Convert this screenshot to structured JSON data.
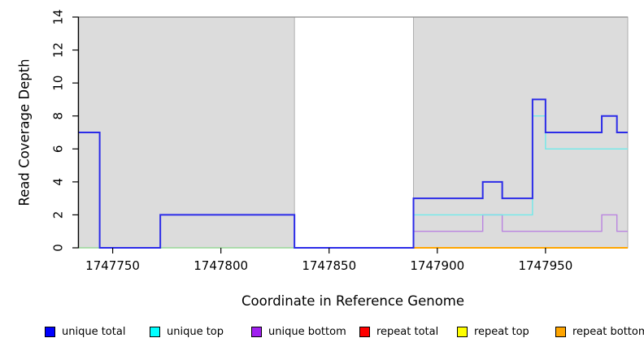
{
  "figure": {
    "xlabel": "Coordinate in Reference Genome",
    "ylabel": "Read Coverage Depth"
  },
  "chart_data": {
    "type": "line",
    "subtype": "step",
    "title": "",
    "xlabel": "Coordinate in Reference Genome",
    "ylabel": "Read Coverage Depth",
    "xlim": [
      1747734,
      1747988
    ],
    "ylim": [
      0,
      14
    ],
    "grid": false,
    "legend_position": "bottom",
    "x_ticks": [
      1747750,
      1747800,
      1747850,
      1747900,
      1747950
    ],
    "y_ticks": [
      0,
      2,
      4,
      6,
      8,
      10,
      12,
      14
    ],
    "top_border_value": 14,
    "shaded_regions": [
      {
        "x0": 1747734,
        "x1": 1747834,
        "fill": "#DCDCDC",
        "border": "#AEAEAE"
      },
      {
        "x0": 1747889,
        "x1": 1747988,
        "fill": "#DCDCDC",
        "border": "#AEAEAE"
      }
    ],
    "series": [
      {
        "name": "zero baseline left region",
        "color": "#97D797",
        "width": 1.4,
        "x": [
          1747734
        ],
        "y": [
          0
        ],
        "x_end": 1747834
      },
      {
        "name": "repeat bottom",
        "color": "#FFA500",
        "width": 2,
        "x": [
          1747889
        ],
        "y": [
          0
        ],
        "x_end": 1747988
      },
      {
        "name": "unique bottom",
        "color": "#BA84E0",
        "width": 1.4,
        "x": [
          1747889,
          1747921,
          1747930,
          1747976,
          1747983
        ],
        "y": [
          1,
          2,
          1,
          2,
          1
        ],
        "x_end": 1747988
      },
      {
        "name": "unique top",
        "color": "#70E9E9",
        "width": 1.4,
        "x": [
          1747889,
          1747944,
          1747950
        ],
        "y": [
          2,
          8,
          6
        ],
        "x_end": 1747988
      },
      {
        "name": "unique total",
        "color": "#2B2BE8",
        "width": 2,
        "x": [
          1747734,
          1747744,
          1747772,
          1747834,
          1747889,
          1747921,
          1747930,
          1747944,
          1747950,
          1747976,
          1747983
        ],
        "y": [
          7,
          0,
          2,
          0,
          3,
          4,
          3,
          9,
          7,
          8,
          7
        ],
        "x_end": 1747988
      }
    ]
  },
  "legend": {
    "items": [
      {
        "label": "unique total",
        "color": "#0000FF"
      },
      {
        "label": "unique top",
        "color": "#00FFFF"
      },
      {
        "label": "unique bottom",
        "color": "#A020F0"
      },
      {
        "label": "repeat total",
        "color": "#FF0000"
      },
      {
        "label": "repeat top",
        "color": "#FFFF00"
      },
      {
        "label": "repeat bottom",
        "color": "#FFA500"
      }
    ]
  }
}
